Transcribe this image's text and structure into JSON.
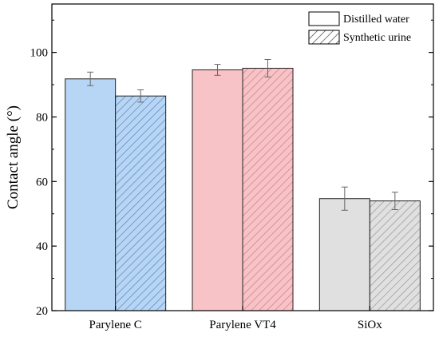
{
  "chart_data": {
    "type": "bar",
    "title": "",
    "xlabel": "",
    "ylabel": "Contact angle (°)",
    "ylim": [
      20,
      115
    ],
    "yticks": [
      20,
      40,
      60,
      80,
      100
    ],
    "grid": false,
    "legend_position": "top-right",
    "categories": [
      "Parylene C",
      "Parylene VT4",
      "SiOx"
    ],
    "category_colors": [
      "#b7d5f4",
      "#f8c3c6",
      "#e0e0e0"
    ],
    "category_hatch_colors": [
      "#5a7fb0",
      "#c87a80",
      "#909090"
    ],
    "series": [
      {
        "name": "Distilled water",
        "pattern": "solid",
        "values": [
          91.8,
          94.6,
          54.7
        ],
        "errors": [
          2.1,
          1.7,
          3.6
        ]
      },
      {
        "name": "Synthetic urine",
        "pattern": "hatched",
        "values": [
          86.5,
          95.1,
          54.0
        ],
        "errors": [
          1.9,
          2.7,
          2.7
        ]
      }
    ]
  }
}
